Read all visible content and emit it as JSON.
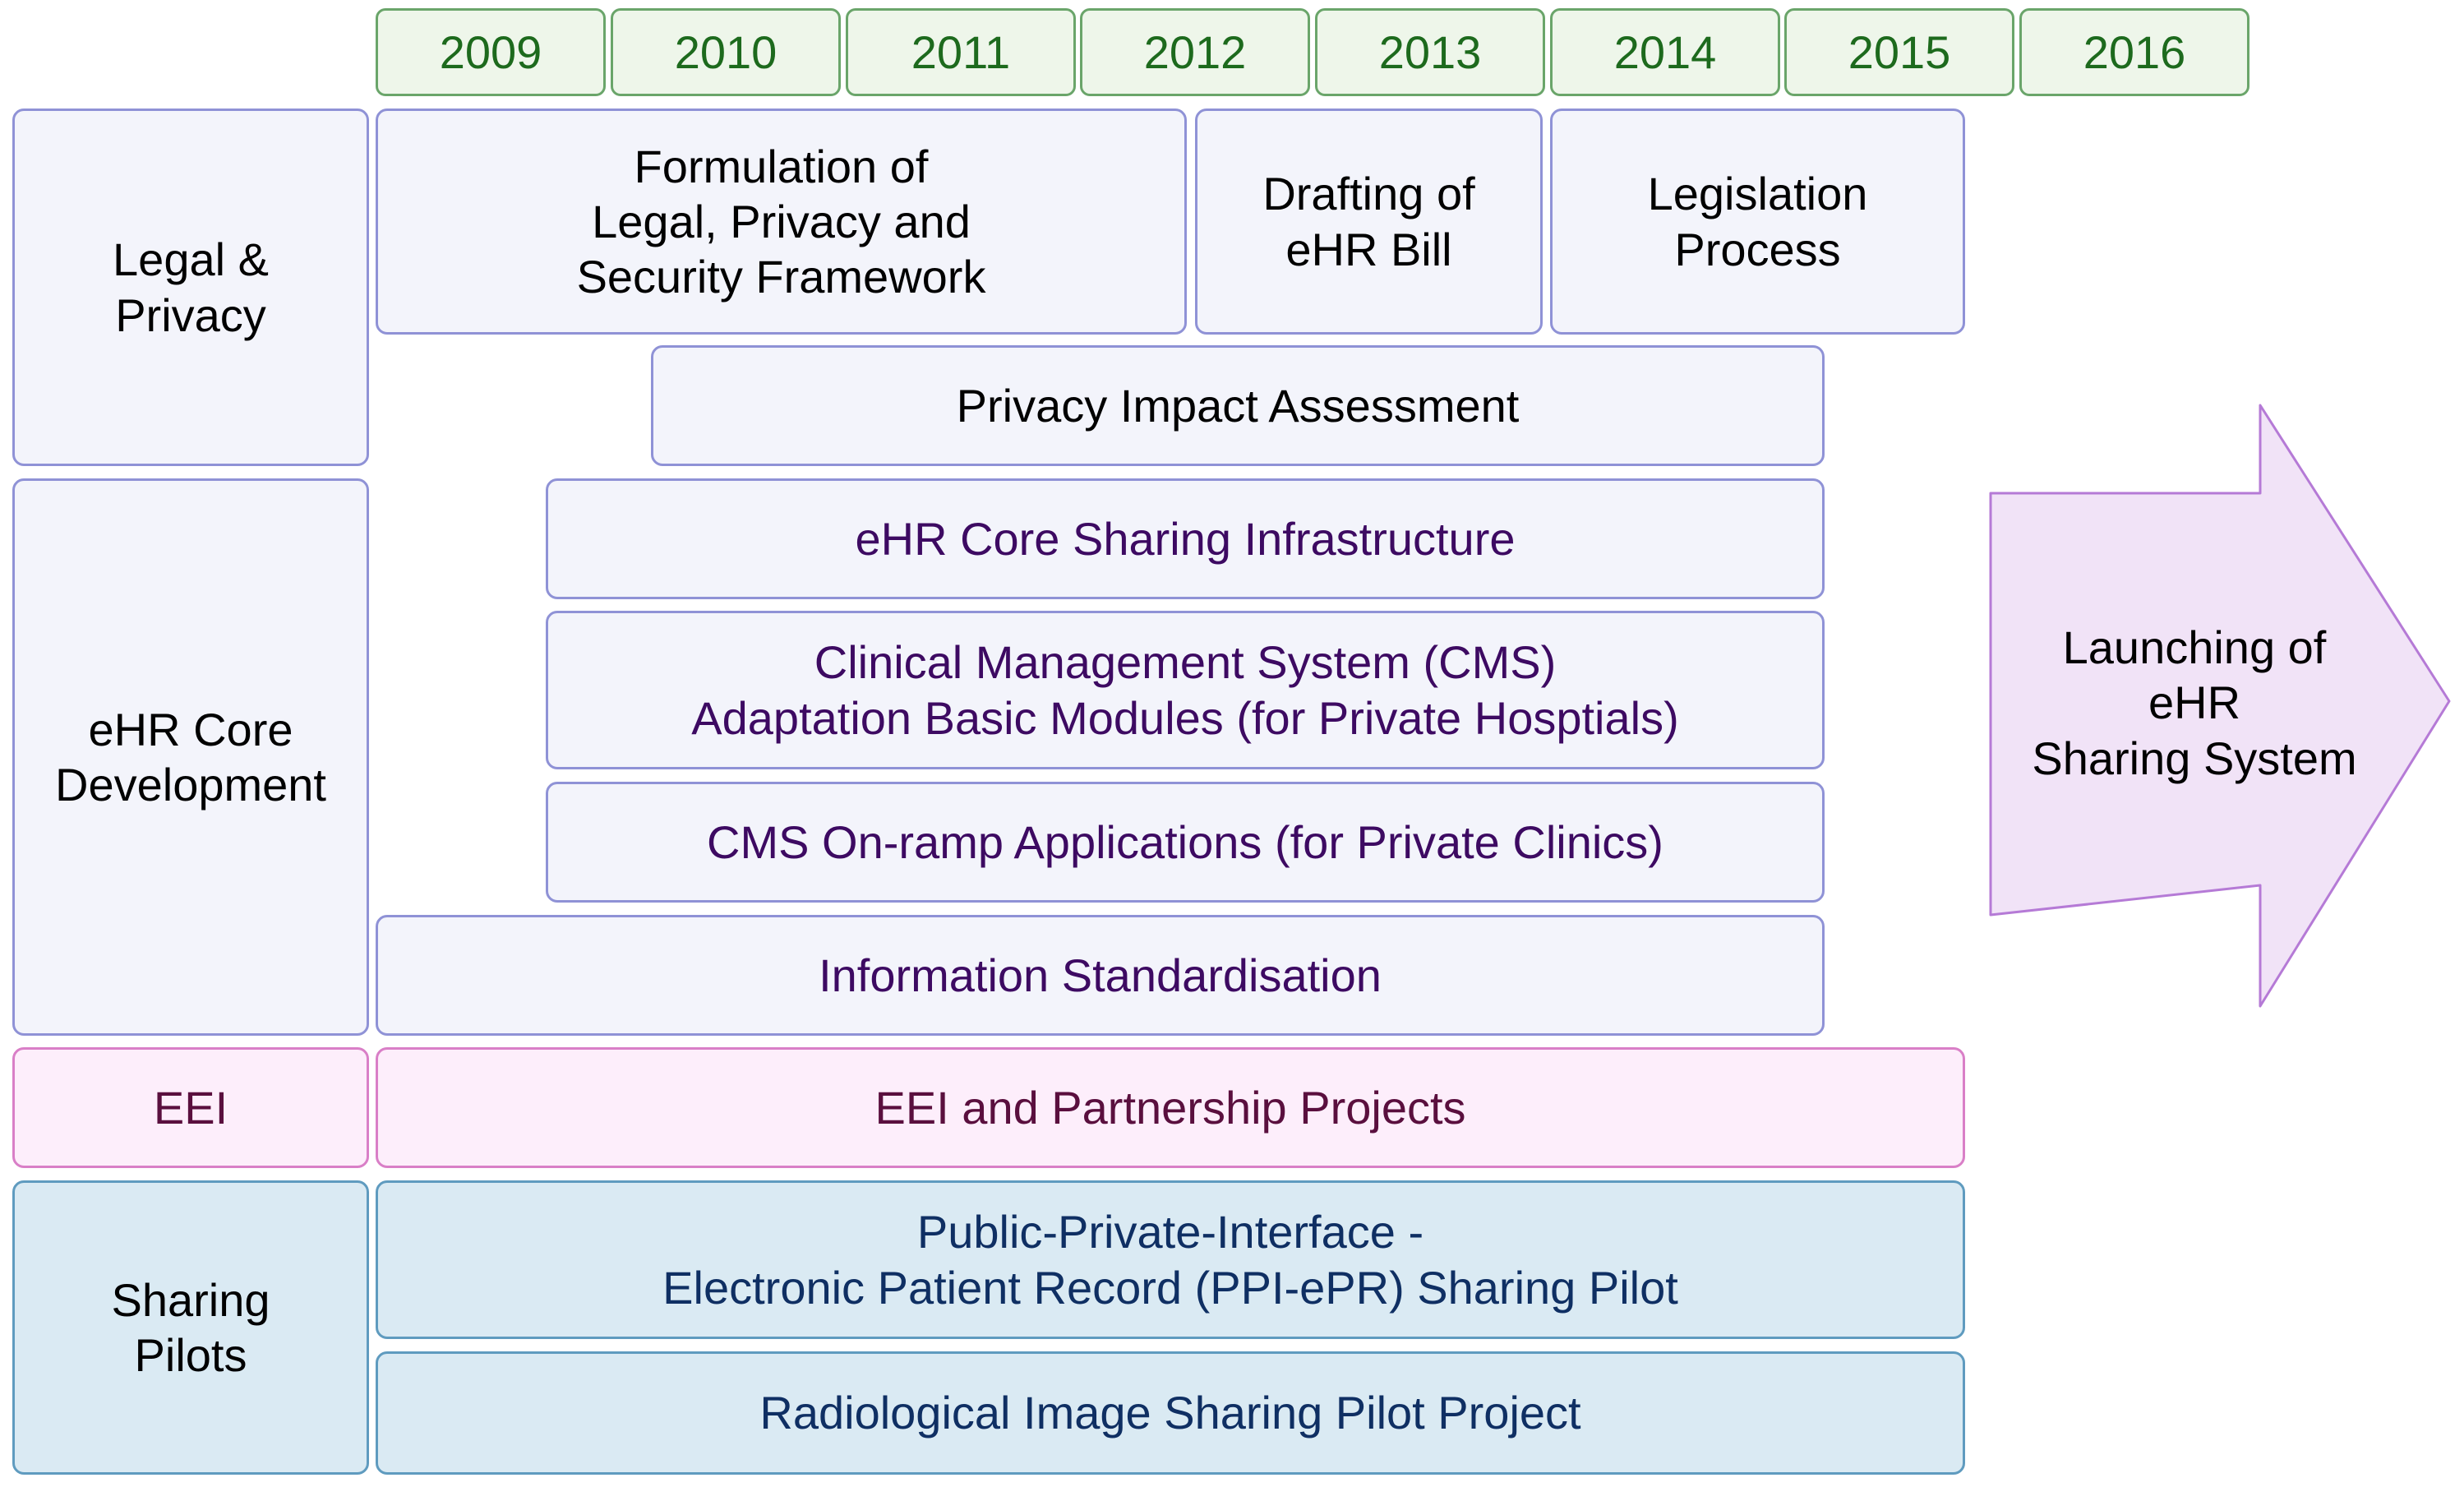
{
  "years": [
    "2009",
    "2010",
    "2011",
    "2012",
    "2013",
    "2014",
    "2015",
    "2016"
  ],
  "categories": {
    "legal_privacy": "Legal &\nPrivacy",
    "ehr_core": "eHR Core\nDevelopment",
    "eei": "EEI",
    "sharing_pilots": "Sharing\nPilots"
  },
  "legal_privacy": {
    "formulation": "Formulation of\nLegal, Privacy and\nSecurity Framework",
    "drafting": "Drafting of\neHR Bill",
    "legislation": "Legislation\nProcess",
    "pia": "Privacy Impact Assessment"
  },
  "ehr_core": {
    "infrastructure": "eHR Core Sharing Infrastructure",
    "cms": "Clinical Management System (CMS)\nAdaptation Basic Modules (for Private Hosptials)",
    "onramp": "CMS On-ramp Applications (for Private Clinics)",
    "standardisation": "Information Standardisation"
  },
  "eei": {
    "projects": "EEI and Partnership Projects"
  },
  "sharing_pilots": {
    "ppi_epr": "Public-Private-Interface -\nElectronic Patient Record (PPI-ePR) Sharing Pilot",
    "radiological": "Radiological Image Sharing Pilot Project"
  },
  "launch": {
    "label": "Launching of\neHR\nSharing System"
  },
  "colors": {
    "year_fill": "#eef6ea",
    "year_border": "#6aa56a",
    "core_fill": "#f3f4fb",
    "core_border": "#8f92d6",
    "eei_fill": "#fdeefb",
    "eei_border": "#d97fc7",
    "share_fill": "#daeaf3",
    "share_border": "#5f9bbf",
    "arrow_fill": "#f1e3f7",
    "arrow_border": "#b57ad6"
  }
}
